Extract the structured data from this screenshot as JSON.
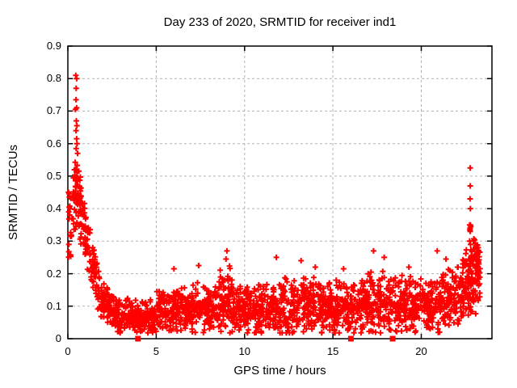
{
  "chart_data": {
    "type": "scatter",
    "title": "Day 233 of 2020, SRMTID for receiver ind1",
    "xlabel": "GPS time / hours",
    "ylabel": "SRMTID / TECUs",
    "xlim": [
      0,
      24
    ],
    "ylim": [
      0,
      0.9
    ],
    "xtick_values": [
      0,
      5,
      10,
      15,
      20
    ],
    "xtick_labels": [
      "0",
      "5",
      "10",
      "15",
      "20"
    ],
    "ytick_values": [
      0,
      0.1,
      0.2,
      0.3,
      0.4,
      0.5,
      0.6,
      0.7,
      0.8,
      0.9
    ],
    "ytick_labels": [
      "0",
      "0.1",
      "0.2",
      "0.3",
      "0.4",
      "0.5",
      "0.6",
      "0.7",
      "0.8",
      "0.9"
    ],
    "grid": true,
    "grid_color": "#b0b0b0",
    "border_color": "#000000",
    "legend": "none",
    "seed": 20200233,
    "series": [
      {
        "name": "SRMTID",
        "marker": "plus",
        "color": "#ff0000",
        "band_segments": [
          [
            0.03,
            0.28,
            0.36,
            0.36,
            0.09,
            22
          ],
          [
            0.3,
            0.75,
            0.455,
            0.44,
            0.08,
            65
          ],
          [
            0.7,
            1.2,
            0.4,
            0.26,
            0.06,
            50
          ],
          [
            1.2,
            1.8,
            0.26,
            0.14,
            0.05,
            60
          ],
          [
            1.8,
            2.6,
            0.125,
            0.085,
            0.04,
            85
          ],
          [
            2.6,
            5.0,
            0.068,
            0.062,
            0.034,
            230
          ],
          [
            5.0,
            7.0,
            0.088,
            0.092,
            0.042,
            190
          ],
          [
            7.0,
            8.5,
            0.095,
            0.09,
            0.05,
            140
          ],
          [
            8.5,
            9.3,
            0.115,
            0.11,
            0.065,
            85
          ],
          [
            9.3,
            12.0,
            0.085,
            0.09,
            0.048,
            255
          ],
          [
            12.0,
            14.5,
            0.1,
            0.1,
            0.055,
            235
          ],
          [
            14.5,
            16.5,
            0.095,
            0.095,
            0.05,
            185
          ],
          [
            16.5,
            19.0,
            0.105,
            0.11,
            0.06,
            235
          ],
          [
            19.0,
            21.0,
            0.1,
            0.105,
            0.055,
            190
          ],
          [
            21.0,
            22.3,
            0.115,
            0.145,
            0.06,
            130
          ],
          [
            22.3,
            23.35,
            0.155,
            0.21,
            0.07,
            145
          ]
        ],
        "outlier_points": [
          [
            0.45,
            0.81
          ],
          [
            0.5,
            0.8
          ],
          [
            0.47,
            0.77
          ],
          [
            0.46,
            0.735
          ],
          [
            0.5,
            0.71
          ],
          [
            0.43,
            0.705
          ],
          [
            0.48,
            0.67
          ],
          [
            0.51,
            0.655
          ],
          [
            0.46,
            0.64
          ],
          [
            0.5,
            0.615
          ],
          [
            0.52,
            0.6
          ],
          [
            0.47,
            0.585
          ],
          [
            0.55,
            0.57
          ],
          [
            6.0,
            0.215
          ],
          [
            7.4,
            0.225
          ],
          [
            8.95,
            0.245
          ],
          [
            9.0,
            0.27
          ],
          [
            11.8,
            0.25
          ],
          [
            13.2,
            0.24
          ],
          [
            14.0,
            0.22
          ],
          [
            15.6,
            0.215
          ],
          [
            17.3,
            0.27
          ],
          [
            17.9,
            0.25
          ],
          [
            19.3,
            0.22
          ],
          [
            20.9,
            0.27
          ],
          [
            21.4,
            0.245
          ],
          [
            22.74,
            0.3
          ],
          [
            22.75,
            0.335
          ],
          [
            22.76,
            0.34
          ],
          [
            22.76,
            0.43
          ],
          [
            22.77,
            0.33
          ],
          [
            22.77,
            0.47
          ],
          [
            22.77,
            0.525
          ],
          [
            22.78,
            0.35
          ],
          [
            22.78,
            0.4
          ],
          [
            22.74,
            0.35
          ],
          [
            22.8,
            0.345
          ],
          [
            22.79,
            0.29
          ],
          [
            23.1,
            0.25
          ]
        ]
      },
      {
        "name": "flagged-epochs",
        "marker": "filled-square",
        "color": "#ff0000",
        "points": [
          [
            3.97,
            0
          ],
          [
            16.02,
            0
          ],
          [
            18.38,
            0
          ]
        ]
      }
    ]
  }
}
